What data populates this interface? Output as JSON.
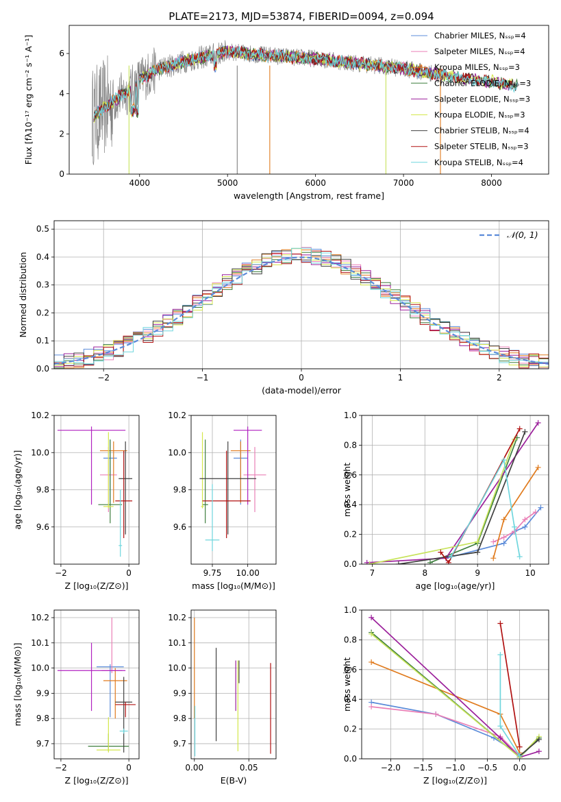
{
  "figure": {
    "title": "PLATE=2173, MJD=53874, FIBERID=0094, z=0.094"
  },
  "chart_data": [
    {
      "id": "spectrum",
      "type": "line",
      "xlabel": "wavelength [Angstrom, rest frame]",
      "ylabel": "Flux [fλ10⁻¹⁷ erg cm⁻² s⁻¹ A⁻¹]",
      "xlim": [
        3200,
        8650
      ],
      "ylim": [
        0,
        7.4
      ],
      "xticks": [
        4000,
        5000,
        6000,
        7000,
        8000
      ],
      "yticks": [
        0,
        2,
        4,
        6
      ],
      "grid": false,
      "legend_position": "top-right",
      "legend": [
        {
          "label": "Chabrier MILES, Nₛₛₚ=4",
          "color": "#5b8bd9"
        },
        {
          "label": "Salpeter MILES, Nₛₛₚ=4",
          "color": "#ea7fb6"
        },
        {
          "label": "Kroupa MILES, Nₛₛₚ=3",
          "color": "#e07b1e"
        },
        {
          "label": "Chabrier ELODIE, Nₛₛₚ=3",
          "color": "#3d7d3d"
        },
        {
          "label": "Salpeter ELODIE, Nₛₛₚ=3",
          "color": "#9b1f9b"
        },
        {
          "label": "Kroupa ELODIE, Nₛₛₚ=3",
          "color": "#d4e74a"
        },
        {
          "label": "Chabrier STELIB, Nₛₛₚ=4",
          "color": "#404040"
        },
        {
          "label": "Salpeter STELIB, Nₛₛₚ=3",
          "color": "#b01010"
        },
        {
          "label": "Kroupa STELIB, Nₛₛₚ=4",
          "color": "#6fd6dd"
        }
      ],
      "continuum": {
        "x": [
          3480,
          3600,
          3750,
          3900,
          4000,
          4200,
          4500,
          4800,
          5000,
          5200,
          5500,
          5800,
          6000,
          6300,
          6600,
          6800,
          7000,
          7200,
          7400,
          7600,
          7800,
          8000,
          8200,
          8300
        ],
        "y": [
          2.9,
          3.3,
          3.8,
          4.2,
          4.7,
          5.2,
          5.6,
          5.9,
          6.1,
          6.0,
          5.9,
          5.8,
          5.75,
          5.6,
          5.45,
          5.35,
          5.25,
          5.1,
          4.95,
          4.8,
          4.7,
          4.6,
          4.45,
          4.4
        ]
      }
    },
    {
      "id": "residuals",
      "type": "histogram",
      "xlabel": "(data-model)/error",
      "ylabel": "Normed distribution",
      "xlim": [
        -2.5,
        2.5
      ],
      "ylim": [
        0,
        0.53
      ],
      "xticks": [
        -2,
        -1,
        0,
        1,
        2
      ],
      "yticks": [
        0.0,
        0.1,
        0.2,
        0.3,
        0.4,
        0.5
      ],
      "grid": true,
      "legend_position": "top-right",
      "legend": [
        {
          "label": "𝒩(0, 1)",
          "color": "#5b8bd9"
        }
      ],
      "bin_width": 0.1,
      "normal_curve": {
        "mean": 0,
        "sigma": 1
      }
    },
    {
      "id": "age-vs-Z",
      "type": "scatter",
      "xlabel": "Z [log₁₀(Z/Z⊙)]",
      "ylabel": "age  [log₁₀(age/yr)]",
      "xlim": [
        -2.2,
        0.3
      ],
      "ylim": [
        9.4,
        10.2
      ],
      "xticks": [
        -2,
        0
      ],
      "yticks": [
        9.6,
        9.8,
        10.0,
        10.2
      ],
      "grid": true,
      "points": [
        {
          "x": -0.55,
          "y": 9.97,
          "xerr": 0.2,
          "yerr": [
            0.25,
            0.1
          ],
          "color": "#5b8bd9"
        },
        {
          "x": -0.6,
          "y": 9.88,
          "xerr": 0.25,
          "yerr": [
            0.2,
            0.15
          ],
          "color": "#ea7fb6"
        },
        {
          "x": -0.45,
          "y": 10.01,
          "xerr": 0.4,
          "yerr": [
            0.28,
            0.05
          ],
          "color": "#e07b1e"
        },
        {
          "x": -0.55,
          "y": 9.72,
          "xerr": 0.35,
          "yerr": [
            0.1,
            0.35
          ],
          "color": "#3d7d3d"
        },
        {
          "x": -1.1,
          "y": 10.12,
          "xerr": 1.0,
          "yerr": [
            0.4,
            0.02
          ],
          "color": "#b020c0"
        },
        {
          "x": -0.6,
          "y": 9.71,
          "xerr": 0.15,
          "yerr": [
            0.01,
            0.4
          ],
          "color": "#d4e74a"
        },
        {
          "x": -0.1,
          "y": 9.86,
          "xerr": 0.2,
          "yerr": [
            0.3,
            0.2
          ],
          "color": "#404040"
        },
        {
          "x": -0.15,
          "y": 9.74,
          "xerr": 0.25,
          "yerr": [
            0.2,
            0.27
          ],
          "color": "#b01010"
        },
        {
          "x": -0.25,
          "y": 9.5,
          "xerr": 0.05,
          "yerr": [
            0.06,
            0.3
          ],
          "color": "#6fd6dd"
        }
      ]
    },
    {
      "id": "age-vs-mass",
      "type": "scatter",
      "xlabel": "mass [log₁₀(M/M⊙)]",
      "ylabel": "",
      "xlim": [
        9.6,
        10.2
      ],
      "ylim": [
        9.4,
        10.2
      ],
      "xticks": [
        9.75,
        10.0
      ],
      "yticks": [
        9.6,
        9.8,
        10.0,
        10.2
      ],
      "grid": true,
      "points": [
        {
          "x": 9.95,
          "y": 9.97,
          "xerr": 0.05,
          "yerr": [
            0.25,
            0.1
          ],
          "color": "#5b8bd9"
        },
        {
          "x": 10.05,
          "y": 9.88,
          "xerr": 0.08,
          "yerr": [
            0.2,
            0.15
          ],
          "color": "#ea7fb6"
        },
        {
          "x": 9.95,
          "y": 10.01,
          "xerr": 0.07,
          "yerr": [
            0.28,
            0.05
          ],
          "color": "#e07b1e"
        },
        {
          "x": 9.7,
          "y": 9.72,
          "xerr": 0.02,
          "yerr": [
            0.1,
            0.35
          ],
          "color": "#3d7d3d"
        },
        {
          "x": 10.0,
          "y": 10.12,
          "xerr": 0.1,
          "yerr": [
            0.4,
            0.02
          ],
          "color": "#b020c0"
        },
        {
          "x": 9.68,
          "y": 9.71,
          "xerr": 0.01,
          "yerr": [
            0.01,
            0.4
          ],
          "color": "#d4e74a"
        },
        {
          "x": 9.86,
          "y": 9.86,
          "xerr": 0.2,
          "yerr": [
            0.3,
            0.2
          ],
          "color": "#404040"
        },
        {
          "x": 9.85,
          "y": 9.74,
          "xerr": 0.17,
          "yerr": [
            0.2,
            0.27
          ],
          "color": "#b01010"
        },
        {
          "x": 9.75,
          "y": 9.53,
          "xerr": 0.05,
          "yerr": [
            0.06,
            0.3
          ],
          "color": "#6fd6dd"
        }
      ]
    },
    {
      "id": "weight-vs-age",
      "type": "line",
      "xlabel": "age  [log₁₀(age/yr)]",
      "ylabel": "mass weight",
      "xlim": [
        6.8,
        10.35
      ],
      "ylim": [
        0,
        1.0
      ],
      "xticks": [
        7,
        8,
        9,
        10
      ],
      "yticks": [
        0.0,
        0.2,
        0.4,
        0.6,
        0.8,
        1.0
      ],
      "grid": true,
      "series": [
        {
          "color": "#5b8bd9",
          "x": [
            8.4,
            9.5,
            9.7,
            9.9,
            10.2
          ],
          "y": [
            0.04,
            0.14,
            0.22,
            0.25,
            0.38
          ]
        },
        {
          "color": "#ea7fb6",
          "x": [
            9.3,
            9.5,
            9.7,
            9.9,
            10.1
          ],
          "y": [
            0.15,
            0.18,
            0.22,
            0.3,
            0.35
          ]
        },
        {
          "color": "#e07b1e",
          "x": [
            9.3,
            9.5,
            10.15
          ],
          "y": [
            0.04,
            0.3,
            0.65
          ]
        },
        {
          "color": "#3d7d3d",
          "x": [
            8.1,
            9.0,
            9.75
          ],
          "y": [
            0.01,
            0.14,
            0.85
          ]
        },
        {
          "color": "#9b1f9b",
          "x": [
            6.9,
            8.4,
            10.15
          ],
          "y": [
            0.01,
            0.04,
            0.95
          ]
        },
        {
          "color": "#c7e35a",
          "x": [
            6.95,
            9.0,
            9.7
          ],
          "y": [
            0.0,
            0.15,
            0.84
          ]
        },
        {
          "color": "#404040",
          "x": [
            7.5,
            9.0,
            9.9
          ],
          "y": [
            0.0,
            0.08,
            0.89
          ]
        },
        {
          "color": "#b01010",
          "x": [
            8.3,
            8.45,
            9.8
          ],
          "y": [
            0.08,
            0.01,
            0.91
          ]
        },
        {
          "color": "#6fd6dd",
          "x": [
            8.5,
            9.5,
            9.7,
            9.8
          ],
          "y": [
            0.05,
            0.7,
            0.25,
            0.05
          ]
        }
      ]
    },
    {
      "id": "mass-vs-Z",
      "type": "scatter",
      "xlabel": "Z [log₁₀(Z/Z⊙)]",
      "ylabel": "mass [log₁₀(M/M⊙)]",
      "xlim": [
        -2.2,
        0.3
      ],
      "ylim": [
        9.64,
        10.23
      ],
      "xticks": [
        -2,
        0
      ],
      "yticks": [
        9.7,
        9.8,
        9.9,
        10.0,
        10.1,
        10.2
      ],
      "grid": true,
      "points": [
        {
          "x": -0.55,
          "y": 10.005,
          "xerr": 0.4,
          "yerr": [
            0.2,
            0.01
          ],
          "color": "#5b8bd9"
        },
        {
          "x": -0.5,
          "y": 9.99,
          "xerr": 0.3,
          "yerr": [
            0.01,
            0.21
          ],
          "color": "#ea7fb6"
        },
        {
          "x": -0.4,
          "y": 9.95,
          "xerr": 0.35,
          "yerr": [
            0.15,
            0.05
          ],
          "color": "#e07b1e"
        },
        {
          "x": -0.6,
          "y": 9.69,
          "xerr": 0.6,
          "yerr": [
            0.02,
            0.05
          ],
          "color": "#3d7d3d"
        },
        {
          "x": -1.1,
          "y": 9.99,
          "xerr": 1.0,
          "yerr": [
            0.16,
            0.11
          ],
          "color": "#b020c0"
        },
        {
          "x": -0.6,
          "y": 9.675,
          "xerr": 0.35,
          "yerr": [
            0.01,
            0.13
          ],
          "color": "#d4e74a"
        },
        {
          "x": -0.15,
          "y": 9.865,
          "xerr": 0.25,
          "yerr": [
            0.2,
            0.1
          ],
          "color": "#404040"
        },
        {
          "x": -0.1,
          "y": 9.855,
          "xerr": 0.3,
          "yerr": [
            0.05,
            0.01
          ],
          "color": "#b01010"
        },
        {
          "x": -0.15,
          "y": 9.75,
          "xerr": 0.12,
          "yerr": [
            0.01,
            0.01
          ],
          "color": "#6fd6dd"
        }
      ]
    },
    {
      "id": "mass-vs-ebv",
      "type": "scatter",
      "xlabel": "E(B-V)",
      "ylabel": "",
      "xlim": [
        -0.003,
        0.075
      ],
      "ylim": [
        9.64,
        10.23
      ],
      "xticks": [
        0.0,
        0.05
      ],
      "yticks": [
        9.7,
        9.8,
        9.9,
        10.0,
        10.1,
        10.2
      ],
      "grid": true,
      "points": [
        {
          "x": 0.0,
          "y": 9.95,
          "yerr": [
            0.15,
            0.25
          ],
          "color": "#e07b1e"
        },
        {
          "x": 0.0005,
          "y": 9.75,
          "yerr": [
            0.1,
            0.1
          ],
          "color": "#6fd6dd"
        },
        {
          "x": 0.02,
          "y": 9.9,
          "yerr": [
            0.19,
            0.18
          ],
          "color": "#404040"
        },
        {
          "x": 0.038,
          "y": 9.98,
          "yerr": [
            0.15,
            0.05
          ],
          "color": "#9b1f9b"
        },
        {
          "x": 0.04,
          "y": 9.85,
          "yerr": [
            0.18,
            0.18
          ],
          "color": "#d4e74a"
        },
        {
          "x": 0.041,
          "y": 9.99,
          "yerr": [
            0.05,
            0.04
          ],
          "color": "#404040"
        },
        {
          "x": 0.07,
          "y": 9.84,
          "yerr": [
            0.18,
            0.18
          ],
          "color": "#b01010"
        }
      ]
    },
    {
      "id": "weight-vs-Z",
      "type": "line",
      "xlabel": "Z [log₁₀(Z/Z⊙)]",
      "ylabel": "mass weight",
      "xlim": [
        -2.45,
        0.45
      ],
      "ylim": [
        0,
        1.0
      ],
      "xticks": [
        -2.0,
        -1.5,
        -1.0,
        -0.5,
        0.0
      ],
      "yticks": [
        0.0,
        0.2,
        0.4,
        0.6,
        0.8,
        1.0
      ],
      "grid": true,
      "series": [
        {
          "color": "#5b8bd9",
          "x": [
            -2.3,
            -1.3,
            -0.4,
            0.0
          ],
          "y": [
            0.38,
            0.3,
            0.14,
            0.03
          ]
        },
        {
          "color": "#ea7fb6",
          "x": [
            -2.3,
            -1.3,
            -0.3,
            0.0
          ],
          "y": [
            0.35,
            0.3,
            0.15,
            0.02
          ]
        },
        {
          "color": "#e07b1e",
          "x": [
            -2.3,
            -0.3,
            0.0
          ],
          "y": [
            0.65,
            0.3,
            0.04
          ]
        },
        {
          "color": "#3d7d3d",
          "x": [
            -2.3,
            0.0,
            0.3
          ],
          "y": [
            0.85,
            0.01,
            0.14
          ]
        },
        {
          "color": "#9b1f9b",
          "x": [
            -2.3,
            -0.3,
            0.0,
            0.3
          ],
          "y": [
            0.95,
            0.14,
            0.01,
            0.05
          ]
        },
        {
          "color": "#c7e35a",
          "x": [
            -2.3,
            0.0,
            0.3
          ],
          "y": [
            0.84,
            0.01,
            0.15
          ]
        },
        {
          "color": "#404040",
          "x": [
            0.0,
            0.3
          ],
          "y": [
            0.02,
            0.13
          ]
        },
        {
          "color": "#b01010",
          "x": [
            -0.3,
            0.0
          ],
          "y": [
            0.91,
            0.08
          ]
        },
        {
          "color": "#6fd6dd",
          "x": [
            -0.3,
            -0.3,
            0.0
          ],
          "y": [
            0.7,
            0.22,
            0.02
          ]
        }
      ]
    }
  ]
}
